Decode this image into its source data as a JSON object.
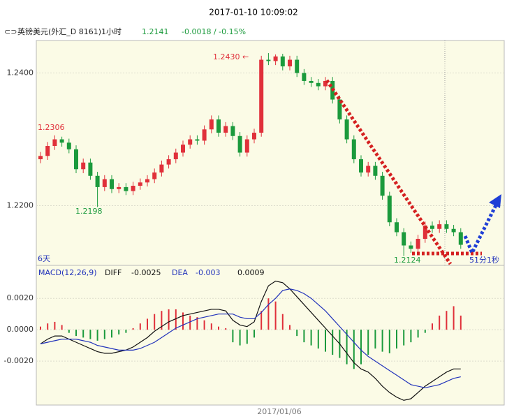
{
  "header": {
    "timestamp": "2017-01-10 10:09:02",
    "symbol": "英镑美元(外汇_D 8161)1小时",
    "price": "1.2141",
    "change": "-0.0018 / -0.15%"
  },
  "chart_data": [
    {
      "type": "candlestick",
      "open": [
        1.227,
        1.2275,
        1.229,
        1.23,
        1.2295,
        1.2285,
        1.2255,
        1.2265,
        1.2245,
        1.2228,
        1.224,
        1.2225,
        1.2228,
        1.2222,
        1.223,
        1.2235,
        1.224,
        1.225,
        1.2262,
        1.227,
        1.228,
        1.2292,
        1.23,
        1.2298,
        1.2315,
        1.233,
        1.231,
        1.232,
        1.2305,
        1.228,
        1.23,
        1.231,
        1.242,
        1.2418,
        1.2425,
        1.241,
        1.242,
        1.24,
        1.2388,
        1.2385,
        1.238,
        1.2388,
        1.236,
        1.233,
        1.23,
        1.227,
        1.225,
        1.226,
        1.2245,
        1.2215,
        1.2175,
        1.216,
        1.214,
        1.2135,
        1.215,
        1.217,
        1.2165,
        1.2172,
        1.2165,
        1.216
      ],
      "high": [
        1.2281,
        1.2296,
        1.2306,
        1.2304,
        1.2301,
        1.2291,
        1.2271,
        1.2271,
        1.2251,
        1.2246,
        1.2246,
        1.2234,
        1.2234,
        1.2236,
        1.2241,
        1.2246,
        1.2256,
        1.2268,
        1.2276,
        1.2286,
        1.2298,
        1.2306,
        1.2306,
        1.2321,
        1.2336,
        1.2336,
        1.2326,
        1.2326,
        1.2311,
        1.2306,
        1.2316,
        1.2426,
        1.243,
        1.2428,
        1.2429,
        1.2426,
        1.2426,
        1.2406,
        1.2394,
        1.2391,
        1.2394,
        1.2394,
        1.2366,
        1.2336,
        1.2306,
        1.2276,
        1.2266,
        1.2266,
        1.2251,
        1.2221,
        1.2181,
        1.2166,
        1.2146,
        1.2156,
        1.2176,
        1.2176,
        1.2178,
        1.2178,
        1.2171,
        1.2166
      ],
      "low": [
        1.2264,
        1.2269,
        1.2284,
        1.2289,
        1.2279,
        1.2249,
        1.2249,
        1.2239,
        1.2198,
        1.2222,
        1.2219,
        1.2219,
        1.2216,
        1.2216,
        1.2224,
        1.2229,
        1.2234,
        1.2244,
        1.2256,
        1.2264,
        1.2274,
        1.2286,
        1.2292,
        1.2292,
        1.2309,
        1.2304,
        1.2304,
        1.2299,
        1.2274,
        1.2274,
        1.2294,
        1.2304,
        1.2412,
        1.2412,
        1.2404,
        1.2404,
        1.2394,
        1.2382,
        1.2379,
        1.2374,
        1.2374,
        1.2354,
        1.2324,
        1.2294,
        1.2264,
        1.2244,
        1.2244,
        1.2239,
        1.2209,
        1.2169,
        1.2154,
        1.2124,
        1.2129,
        1.2129,
        1.2144,
        1.2159,
        1.2159,
        1.2159,
        1.2154,
        1.2135
      ],
      "close": [
        1.2275,
        1.229,
        1.23,
        1.2295,
        1.2285,
        1.2255,
        1.2265,
        1.2245,
        1.2228,
        1.224,
        1.2225,
        1.2228,
        1.2222,
        1.223,
        1.2235,
        1.224,
        1.225,
        1.2262,
        1.227,
        1.228,
        1.2292,
        1.23,
        1.2298,
        1.2315,
        1.233,
        1.231,
        1.232,
        1.2305,
        1.228,
        1.23,
        1.231,
        1.242,
        1.2418,
        1.2425,
        1.241,
        1.242,
        1.24,
        1.2388,
        1.2385,
        1.238,
        1.2388,
        1.236,
        1.233,
        1.23,
        1.227,
        1.225,
        1.226,
        1.2245,
        1.2215,
        1.2175,
        1.216,
        1.214,
        1.2135,
        1.215,
        1.217,
        1.2165,
        1.2172,
        1.2165,
        1.216,
        1.2141
      ],
      "up_color": "#e0303a",
      "down_color": "#1b9a3c",
      "ylim": [
        1.211,
        1.2449
      ],
      "yticks": [
        {
          "value": 1.22,
          "label": "1.2200"
        },
        {
          "value": 1.24,
          "label": "1.2400"
        }
      ],
      "annotations": [
        "1.2430",
        "1.2306",
        "1.2198",
        "1.2124",
        "6天",
        "51分1秒"
      ]
    },
    {
      "type": "macd",
      "title": "MACD(12,26,9)",
      "series": [
        {
          "name": "DIFF",
          "color": "#111111",
          "values": [
            -0.0009,
            -0.0006,
            -0.0004,
            -0.0004,
            -0.0006,
            -0.0008,
            -0.001,
            -0.0012,
            -0.0014,
            -0.0015,
            -0.0015,
            -0.0014,
            -0.0013,
            -0.0011,
            -0.0008,
            -0.0005,
            -0.0001,
            0.0002,
            0.0005,
            0.0007,
            0.0009,
            0.001,
            0.0011,
            0.0012,
            0.0013,
            0.0013,
            0.0012,
            0.0006,
            0.0003,
            0.0002,
            0.0005,
            0.0018,
            0.0028,
            0.0031,
            0.003,
            0.0026,
            0.0021,
            0.0016,
            0.0011,
            0.0006,
            0.0001,
            -0.0004,
            -0.0009,
            -0.0015,
            -0.0021,
            -0.0025,
            -0.0027,
            -0.0031,
            -0.0036,
            -0.004,
            -0.0043,
            -0.0045,
            -0.0044,
            -0.004,
            -0.0036,
            -0.0033,
            -0.003,
            -0.0027,
            -0.0025,
            -0.0025
          ]
        },
        {
          "name": "DEA",
          "color": "#2233bb",
          "values": [
            -0.0009,
            -0.0008,
            -0.0007,
            -0.0006,
            -0.0006,
            -0.0006,
            -0.0007,
            -0.0008,
            -0.001,
            -0.0011,
            -0.0012,
            -0.0013,
            -0.0013,
            -0.0013,
            -0.0012,
            -0.001,
            -0.0008,
            -0.0005,
            -0.0002,
            0.0001,
            0.0003,
            0.0005,
            0.0007,
            0.0008,
            0.0009,
            0.001,
            0.001,
            0.001,
            0.0008,
            0.0007,
            0.0007,
            0.0011,
            0.0016,
            0.002,
            0.0025,
            0.0026,
            0.0025,
            0.0023,
            0.002,
            0.0016,
            0.0012,
            0.0007,
            0.0002,
            -0.0003,
            -0.0008,
            -0.0013,
            -0.0017,
            -0.002,
            -0.0023,
            -0.0026,
            -0.0029,
            -0.0032,
            -0.0035,
            -0.0036,
            -0.0037,
            -0.0036,
            -0.0035,
            -0.0033,
            -0.0031,
            -0.003
          ]
        }
      ],
      "histogram": {
        "values": [
          0.0002,
          0.0004,
          0.0005,
          0.0003,
          -0.0002,
          -0.0004,
          -0.0005,
          -0.0006,
          -0.0007,
          -0.0006,
          -0.0005,
          -0.0003,
          -0.0002,
          0.0001,
          0.0004,
          0.0007,
          0.001,
          0.0012,
          0.0013,
          0.0013,
          0.0011,
          0.0009,
          0.0008,
          0.0006,
          0.0004,
          0.0002,
          0.0001,
          -0.0008,
          -0.001,
          -0.0009,
          -0.0005,
          0.0012,
          0.002,
          0.0018,
          0.001,
          0.0003,
          -0.0004,
          -0.0008,
          -0.001,
          -0.0012,
          -0.0014,
          -0.0016,
          -0.0018,
          -0.0022,
          -0.0025,
          -0.0022,
          -0.0016,
          -0.0012,
          -0.0014,
          -0.0015,
          -0.0012,
          -0.001,
          -0.0008,
          -0.0005,
          -0.0002,
          0.0004,
          0.0009,
          0.0012,
          0.0015,
          0.0009
        ],
        "up_color": "#e0303a",
        "down_color": "#1b9a3c"
      },
      "ylim": [
        -0.0048,
        0.0033
      ],
      "yticks": [
        {
          "value": -0.002,
          "label": "-0.0020"
        },
        {
          "value": 0,
          "label": "0.0000"
        },
        {
          "value": 0.002,
          "label": "0.0020"
        }
      ],
      "x_label": "2017/01/06"
    }
  ]
}
